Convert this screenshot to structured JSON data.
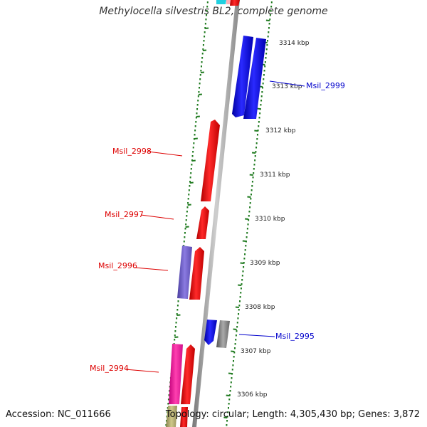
{
  "title": "Methylocella silvestris BL2, complete genome",
  "accession": "Accession: NC_011666",
  "topology": "Topology: circular; Length: 4,305,430 bp; Genes: 3,872",
  "ticks": [
    {
      "label": "3314 kbp"
    },
    {
      "label": "3313 kbp"
    },
    {
      "label": "3312 kbp"
    },
    {
      "label": "3311 kbp"
    },
    {
      "label": "3310 kbp"
    },
    {
      "label": "3309 kbp"
    },
    {
      "label": "3308 kbp"
    },
    {
      "label": "3307 kbp"
    },
    {
      "label": "3306 kbp"
    }
  ],
  "gene_labels": [
    {
      "label": "Msil_2999",
      "color": "#0000cc"
    },
    {
      "label": "Msil_2998",
      "color": "#dd0000"
    },
    {
      "label": "Msil_2997",
      "color": "#dd0000"
    },
    {
      "label": "Msil_2996",
      "color": "#dd0000"
    },
    {
      "label": "Msil_2995",
      "color": "#0000cc"
    },
    {
      "label": "Msil_2994",
      "color": "#dd0000"
    }
  ],
  "colors": {
    "forward_gene": "#ff0000",
    "reverse_gene": "#0000ff",
    "tick_dots": "#1f7a1f",
    "backbone": "#999999"
  }
}
